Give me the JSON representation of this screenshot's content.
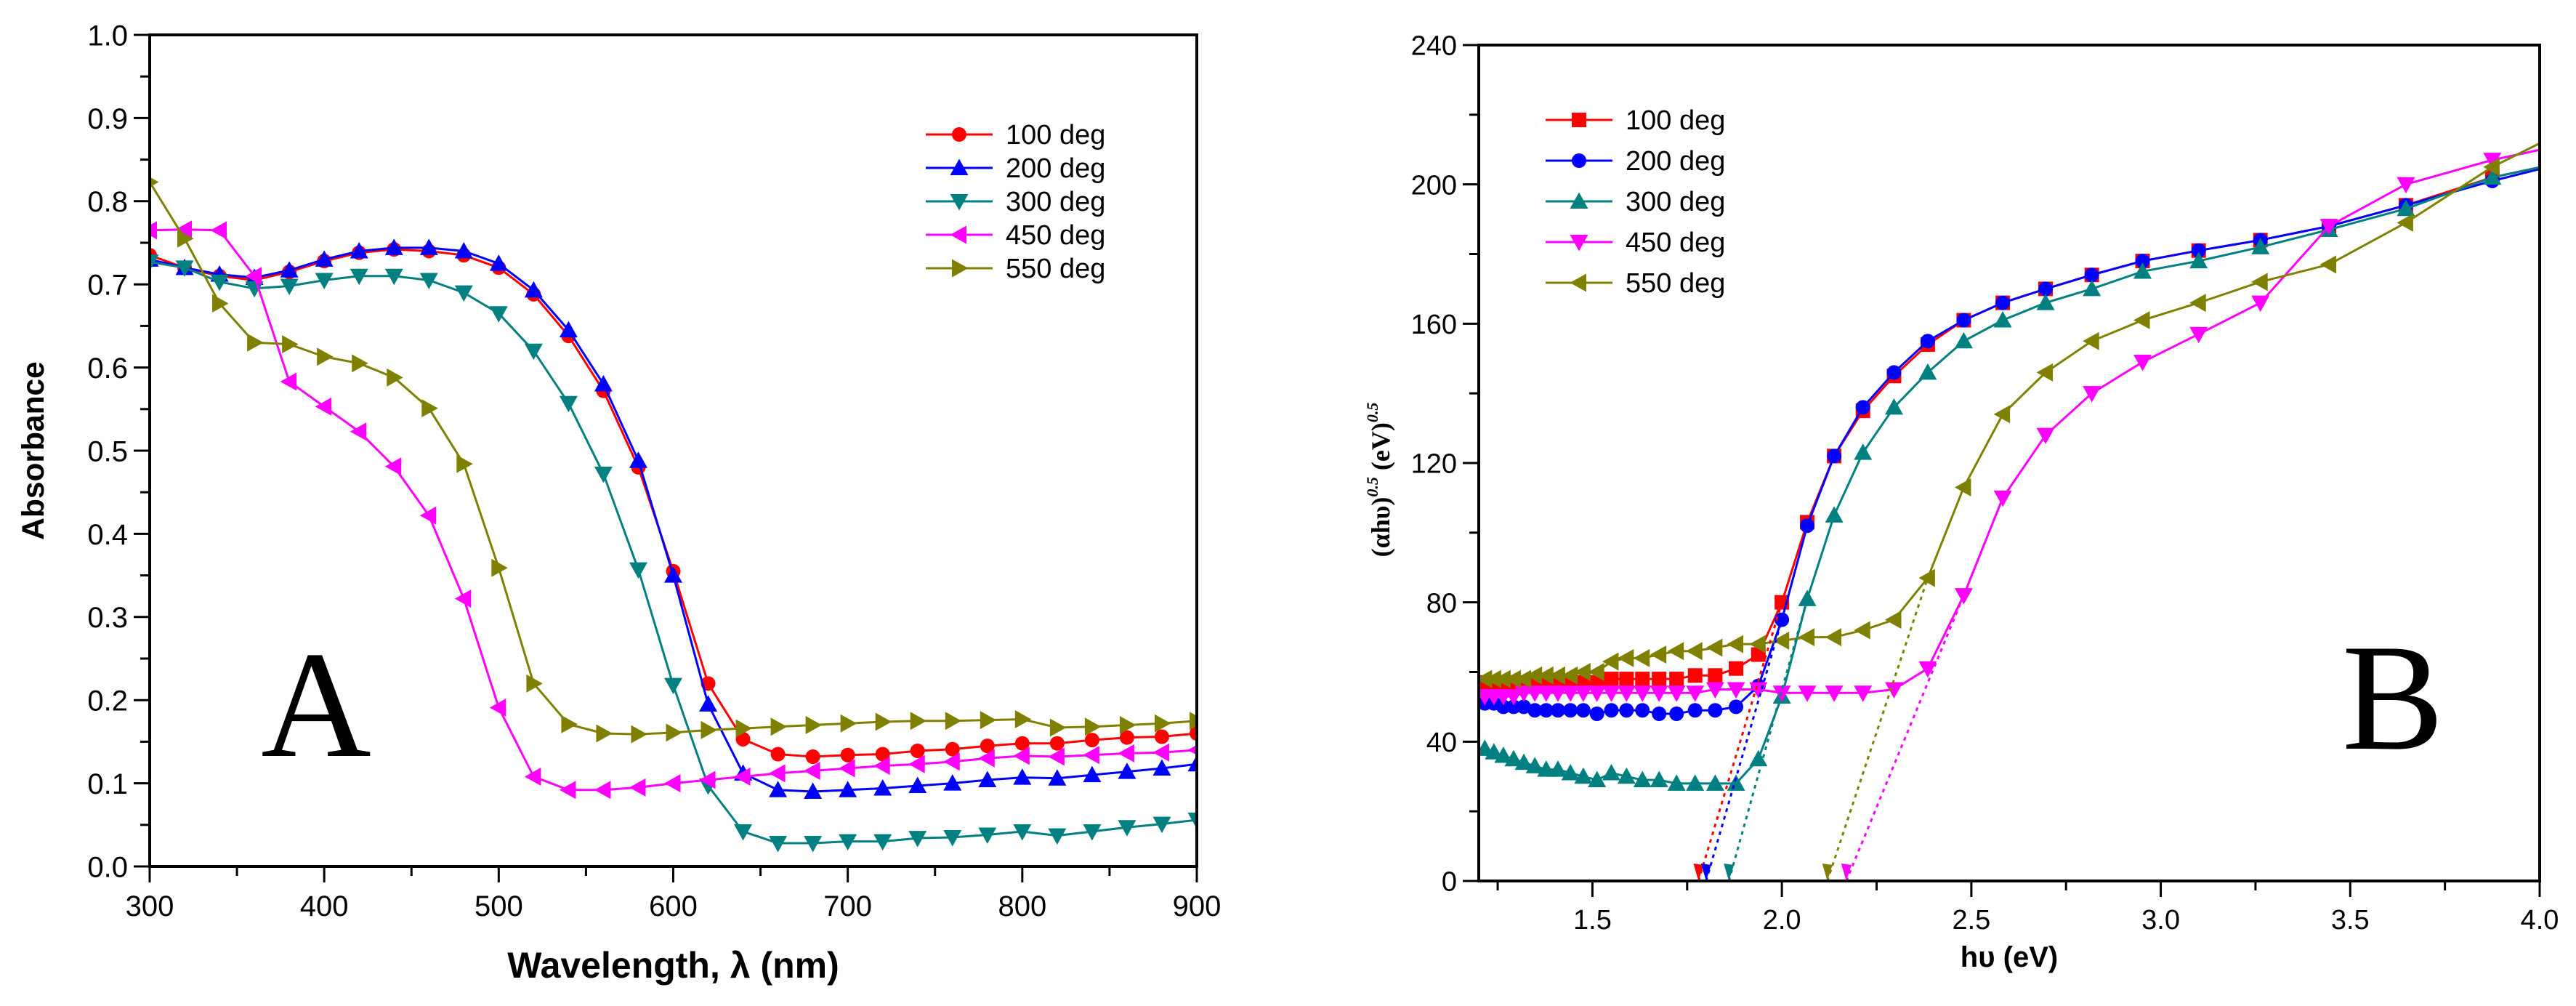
{
  "chart_data": [
    {
      "type": "line",
      "panel_label": "A",
      "title": "",
      "xlabel": "Wavelength, λ (nm)",
      "ylabel": "Absorbance",
      "xlim": [
        300,
        900
      ],
      "ylim": [
        0,
        1.0
      ],
      "xticks": [
        300,
        400,
        500,
        600,
        700,
        800,
        900
      ],
      "xtick_labels": [
        "300",
        "400",
        "500",
        "600",
        "700",
        "800",
        "900"
      ],
      "yticks": [
        0,
        0.1,
        0.2,
        0.3,
        0.4,
        0.5,
        0.6,
        0.7,
        0.8,
        0.9,
        1.0
      ],
      "ytick_labels": [
        "0.0",
        "0.1",
        "0.2",
        "0.3",
        "0.4",
        "0.5",
        "0.6",
        "0.7",
        "0.8",
        "0.9",
        "1.0"
      ],
      "grid": false,
      "legend_position": "top-right",
      "x": [
        300,
        320,
        340,
        360,
        380,
        400,
        420,
        440,
        460,
        480,
        500,
        520,
        540,
        560,
        580,
        600,
        620,
        640,
        660,
        680,
        700,
        720,
        740,
        760,
        780,
        800,
        820,
        840,
        860,
        880,
        900
      ],
      "series": [
        {
          "name": "100 deg",
          "color": "#ff0000",
          "marker": "circle",
          "values": [
            0.735,
            0.72,
            0.71,
            0.705,
            0.715,
            0.728,
            0.738,
            0.742,
            0.74,
            0.735,
            0.72,
            0.688,
            0.638,
            0.572,
            0.48,
            0.355,
            0.22,
            0.153,
            0.135,
            0.132,
            0.134,
            0.135,
            0.139,
            0.141,
            0.145,
            0.148,
            0.148,
            0.152,
            0.155,
            0.156,
            0.16
          ]
        },
        {
          "name": "200 deg",
          "color": "#0000ff",
          "marker": "triangle-up",
          "values": [
            0.73,
            0.72,
            0.712,
            0.708,
            0.717,
            0.73,
            0.74,
            0.744,
            0.744,
            0.74,
            0.725,
            0.693,
            0.645,
            0.58,
            0.488,
            0.35,
            0.195,
            0.112,
            0.092,
            0.09,
            0.092,
            0.094,
            0.097,
            0.1,
            0.104,
            0.107,
            0.106,
            0.11,
            0.114,
            0.118,
            0.123
          ]
        },
        {
          "name": "300 deg",
          "color": "#008080",
          "marker": "triangle-down",
          "values": [
            0.727,
            0.72,
            0.703,
            0.695,
            0.698,
            0.705,
            0.71,
            0.71,
            0.705,
            0.69,
            0.665,
            0.62,
            0.557,
            0.472,
            0.357,
            0.218,
            0.097,
            0.042,
            0.028,
            0.028,
            0.03,
            0.03,
            0.034,
            0.035,
            0.038,
            0.042,
            0.037,
            0.042,
            0.047,
            0.051,
            0.056
          ]
        },
        {
          "name": "450 deg",
          "color": "#ff00ff",
          "marker": "triangle-left",
          "values": [
            0.765,
            0.766,
            0.765,
            0.71,
            0.583,
            0.553,
            0.523,
            0.481,
            0.422,
            0.322,
            0.191,
            0.108,
            0.092,
            0.092,
            0.095,
            0.1,
            0.104,
            0.108,
            0.112,
            0.115,
            0.118,
            0.121,
            0.123,
            0.126,
            0.13,
            0.133,
            0.132,
            0.134,
            0.136,
            0.137,
            0.14
          ]
        },
        {
          "name": "550 deg",
          "color": "#808000",
          "marker": "triangle-right",
          "values": [
            0.823,
            0.755,
            0.677,
            0.63,
            0.628,
            0.613,
            0.605,
            0.588,
            0.551,
            0.484,
            0.359,
            0.22,
            0.171,
            0.16,
            0.159,
            0.161,
            0.164,
            0.166,
            0.168,
            0.17,
            0.172,
            0.174,
            0.175,
            0.175,
            0.176,
            0.177,
            0.167,
            0.168,
            0.17,
            0.172,
            0.175
          ]
        }
      ]
    },
    {
      "type": "line",
      "panel_label": "B",
      "title": "",
      "xlabel": "hυ (eV)",
      "ylabel_main": "(αhυ)",
      "ylabel_sup1": "0.5",
      "ylabel_unit": " (eV)",
      "ylabel_sup2": "0.5",
      "xlim": [
        1.2,
        4.0
      ],
      "ylim": [
        0,
        240
      ],
      "xticks": [
        1.5,
        2.0,
        2.5,
        3.0,
        3.5,
        4.0
      ],
      "xtick_labels": [
        "1.5",
        "2.0",
        "2.5",
        "3.0",
        "3.5",
        "4.0"
      ],
      "yticks": [
        0,
        40,
        80,
        120,
        160,
        200,
        240
      ],
      "ytick_labels": [
        "0",
        "40",
        "80",
        "120",
        "160",
        "200",
        "240"
      ],
      "grid": false,
      "legend_position": "top-left",
      "x": [
        1.216,
        1.24,
        1.265,
        1.292,
        1.319,
        1.348,
        1.378,
        1.409,
        1.442,
        1.476,
        1.512,
        1.55,
        1.59,
        1.632,
        1.676,
        1.722,
        1.771,
        1.824,
        1.879,
        1.938,
        2.0,
        2.067,
        2.138,
        2.214,
        2.296,
        2.385,
        2.48,
        2.583,
        2.696,
        2.818,
        2.952,
        3.1,
        3.263,
        3.444,
        3.647,
        3.875,
        4.133
      ],
      "series": [
        {
          "name": "100 deg",
          "color": "#ff0000",
          "marker": "square",
          "values": [
            57,
            57,
            57,
            57,
            57,
            57,
            57,
            57,
            57,
            57,
            57,
            58,
            58,
            58,
            58,
            58,
            59,
            59,
            61,
            65,
            80,
            103,
            122,
            135,
            145,
            154,
            161,
            166,
            170,
            174,
            178,
            181,
            184,
            188,
            194,
            202,
            208
          ]
        },
        {
          "name": "200 deg",
          "color": "#0000ff",
          "marker": "circle",
          "values": [
            51,
            51,
            50,
            50,
            50,
            49,
            49,
            49,
            49,
            49,
            48,
            49,
            49,
            49,
            48,
            48,
            49,
            49,
            50,
            56,
            75,
            102,
            122,
            136,
            146,
            155,
            161,
            166,
            170,
            174,
            178,
            181,
            184,
            188,
            194,
            201,
            208
          ]
        },
        {
          "name": "300 deg",
          "color": "#008080",
          "marker": "triangle-up",
          "values": [
            38,
            37,
            36,
            35,
            34,
            33,
            32,
            32,
            31,
            30,
            29,
            31,
            30,
            29,
            29,
            28,
            28,
            28,
            28,
            35,
            53,
            81,
            105,
            123,
            136,
            146,
            155,
            161,
            166,
            170,
            175,
            178,
            182,
            187,
            193,
            202,
            208
          ]
        },
        {
          "name": "450 deg",
          "color": "#ff00ff",
          "marker": "triangle-down",
          "values": [
            53,
            53,
            53,
            53,
            54,
            54,
            54,
            54,
            54,
            54,
            54,
            54,
            54,
            54,
            54,
            54,
            54,
            55,
            55,
            55,
            54,
            54,
            54,
            54,
            55,
            61,
            82,
            110,
            128,
            140,
            149,
            157,
            166,
            188,
            200,
            207,
            213
          ]
        },
        {
          "name": "550 deg",
          "color": "#808000",
          "marker": "triangle-left",
          "values": [
            58,
            58,
            58,
            58,
            58,
            59,
            59,
            59,
            59,
            60,
            60,
            63,
            64,
            64,
            65,
            66,
            66,
            67,
            68,
            68,
            69,
            70,
            70,
            72,
            75,
            87,
            113,
            134,
            146,
            155,
            161,
            166,
            172,
            177,
            189,
            205,
            219
          ]
        }
      ],
      "extrapolations": [
        {
          "series": "100 deg",
          "intercept_eV": 1.78,
          "through": [
            2.0,
            80
          ]
        },
        {
          "series": "200 deg",
          "intercept_eV": 1.8,
          "through": [
            2.0,
            75
          ]
        },
        {
          "series": "300 deg",
          "intercept_eV": 1.86,
          "through": [
            2.067,
            81
          ]
        },
        {
          "series": "550 deg",
          "intercept_eV": 2.12,
          "through": [
            2.385,
            87
          ]
        },
        {
          "series": "450 deg",
          "intercept_eV": 2.17,
          "through": [
            2.48,
            82
          ]
        }
      ]
    }
  ]
}
